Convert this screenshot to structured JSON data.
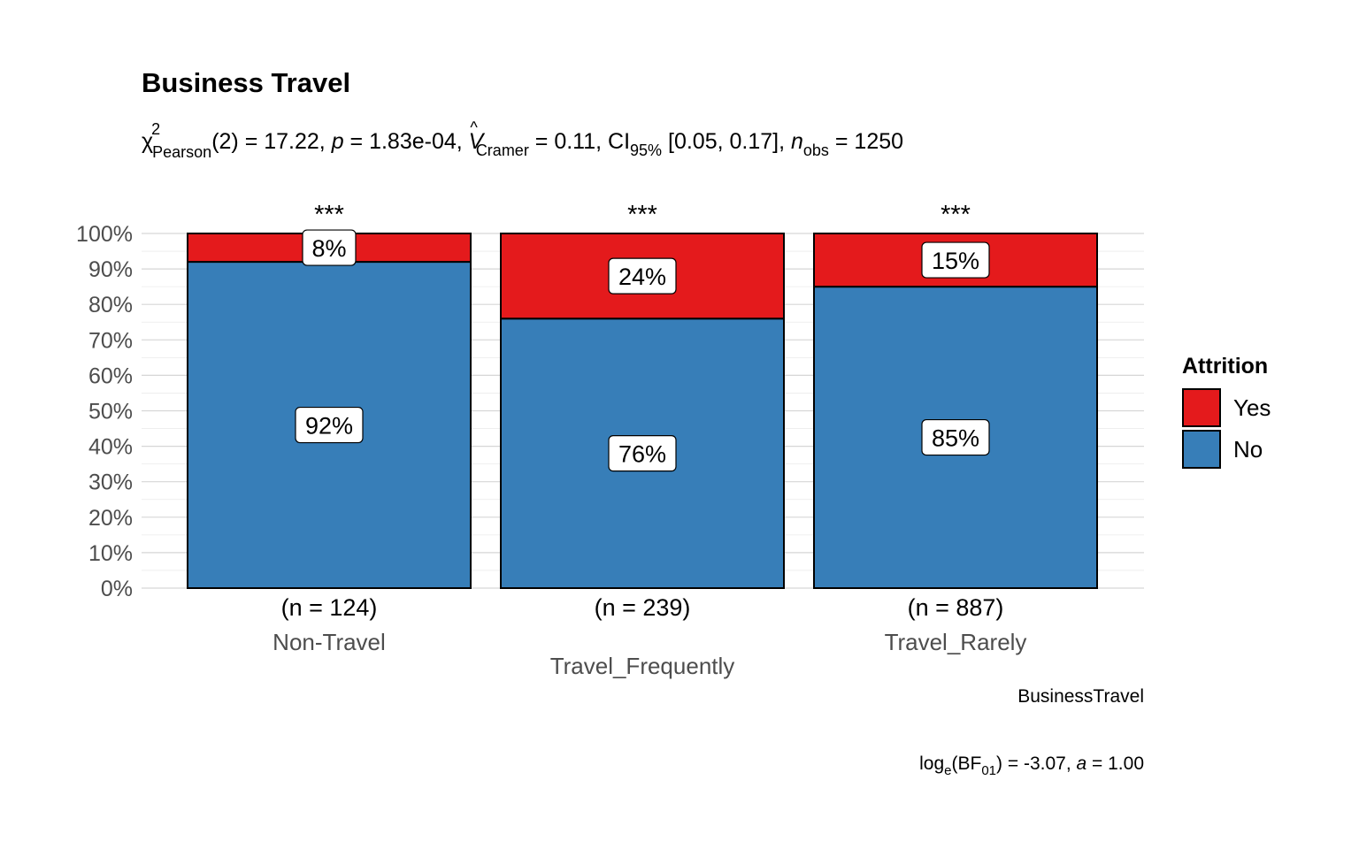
{
  "chart_data": {
    "type": "bar",
    "stacked": true,
    "title": "Business Travel",
    "subtitle": {
      "chi_symbol": "χ",
      "chi_sup": "2",
      "chi_sub": "Pearson",
      "df_stat": "(2) = 17.22, ",
      "p_sym": "p",
      "p_val": " = 1.83e-04, ",
      "v_sym": "V",
      "v_hat": "^",
      "v_sub": "Cramer",
      "v_val": " = 0.11, CI",
      "ci_sub": "95%",
      "ci_val": " [0.05, 0.17], ",
      "n_sym": "n",
      "n_sub": "obs",
      "n_val": " = 1250"
    },
    "categories": [
      "Non-Travel",
      "Travel_Frequently",
      "Travel_Rarely"
    ],
    "counts": [
      "(n = 124)",
      "(n = 239)",
      "(n = 887)"
    ],
    "significance": [
      "***",
      "***",
      "***"
    ],
    "series": [
      {
        "name": "No",
        "color": "#377EB8",
        "values": [
          92,
          76,
          85
        ],
        "labels": [
          "92%",
          "76%",
          "85%"
        ]
      },
      {
        "name": "Yes",
        "color": "#E41A1C",
        "values": [
          8,
          24,
          15
        ],
        "labels": [
          "8%",
          "24%",
          "15%"
        ]
      }
    ],
    "ylim": [
      0,
      100
    ],
    "yticks": [
      0,
      10,
      20,
      30,
      40,
      50,
      60,
      70,
      80,
      90,
      100
    ],
    "ytick_labels": [
      "0%",
      "10%",
      "20%",
      "30%",
      "40%",
      "50%",
      "60%",
      "70%",
      "80%",
      "90%",
      "100%"
    ],
    "xlabel": "BusinessTravel",
    "ylabel": "",
    "legend": {
      "title": "Attrition",
      "position": "right",
      "items": [
        {
          "label": "Yes",
          "color": "#E41A1C"
        },
        {
          "label": "No",
          "color": "#377EB8"
        }
      ]
    },
    "grid": true,
    "caption": {
      "log_text": "log",
      "log_sub": "e",
      "bf_text": "(BF",
      "bf_sub": "01",
      "bf_val": ") = -3.07, ",
      "a_sym": "a",
      "a_val": " = 1.00"
    }
  }
}
